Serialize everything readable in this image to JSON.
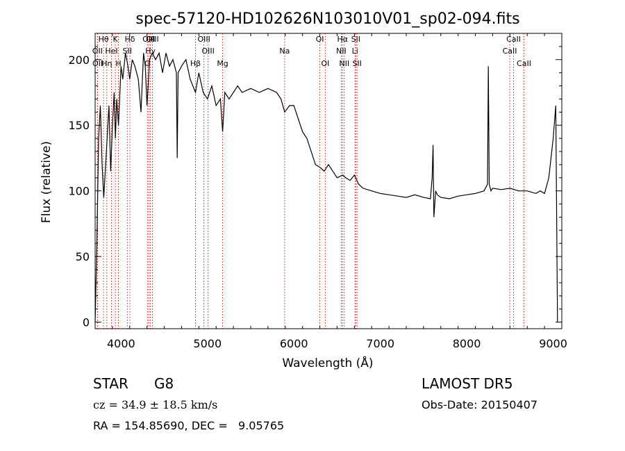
{
  "chart_data": {
    "type": "line",
    "title": "spec-57120-HD102626N103010V01_sp02-094.fits",
    "xlabel": "Wavelength (Å)",
    "ylabel": "Flux (relative)",
    "xlim": [
      3700,
      9100
    ],
    "ylim": [
      -5,
      220
    ],
    "xticks": [
      4000,
      5000,
      6000,
      7000,
      8000,
      9000
    ],
    "yticks": [
      0,
      50,
      100,
      150,
      200
    ],
    "grid": false,
    "series": [
      {
        "color": "#000000",
        "x": [
          3700,
          3720,
          3740,
          3760,
          3780,
          3800,
          3830,
          3860,
          3880,
          3900,
          3920,
          3935,
          3950,
          3970,
          3990,
          4000,
          4020,
          4050,
          4080,
          4100,
          4130,
          4160,
          4200,
          4230,
          4260,
          4280,
          4300,
          4330,
          4360,
          4400,
          4440,
          4480,
          4520,
          4560,
          4600,
          4640,
          4650,
          4660,
          4700,
          4750,
          4800,
          4861,
          4900,
          4950,
          5000,
          5050,
          5100,
          5150,
          5175,
          5200,
          5250,
          5300,
          5350,
          5400,
          5500,
          5600,
          5700,
          5800,
          5850,
          5893,
          5950,
          6000,
          6050,
          6100,
          6150,
          6200,
          6250,
          6300,
          6350,
          6400,
          6450,
          6500,
          6563,
          6600,
          6650,
          6700,
          6750,
          6800,
          6900,
          7000,
          7100,
          7200,
          7300,
          7400,
          7500,
          7580,
          7600,
          7610,
          7620,
          7640,
          7660,
          7700,
          7800,
          7900,
          8000,
          8100,
          8200,
          8240,
          8250,
          8260,
          8280,
          8300,
          8400,
          8500,
          8600,
          8700,
          8800,
          8850,
          8900,
          8950,
          9000,
          9030,
          9050
        ],
        "y": [
          0,
          60,
          140,
          165,
          120,
          95,
          130,
          165,
          115,
          150,
          175,
          140,
          170,
          150,
          180,
          195,
          185,
          205,
          195,
          185,
          200,
          195,
          185,
          160,
          205,
          195,
          165,
          200,
          205,
          200,
          205,
          190,
          205,
          195,
          200,
          190,
          125,
          190,
          195,
          200,
          185,
          175,
          190,
          175,
          170,
          180,
          165,
          170,
          145,
          175,
          170,
          175,
          180,
          175,
          178,
          175,
          178,
          175,
          170,
          160,
          165,
          165,
          155,
          145,
          140,
          130,
          120,
          118,
          115,
          120,
          115,
          110,
          112,
          110,
          108,
          112,
          105,
          102,
          100,
          98,
          97,
          96,
          95,
          97,
          95,
          94,
          110,
          135,
          80,
          100,
          97,
          95,
          94,
          96,
          97,
          98,
          100,
          105,
          195,
          105,
          100,
          102,
          101,
          102,
          100,
          100,
          98,
          100,
          98,
          110,
          140,
          165,
          0
        ]
      }
    ],
    "lines": [
      {
        "label": "Hθ",
        "x": 3797,
        "row": 1
      },
      {
        "label": "OII",
        "x": 3727,
        "row": 2
      },
      {
        "label": "OII",
        "x": 3729,
        "row": 3
      },
      {
        "label": "Hη",
        "x": 3835,
        "row": 3
      },
      {
        "label": "HeI",
        "x": 3889,
        "row": 2
      },
      {
        "label": "K",
        "x": 3934,
        "row": 1
      },
      {
        "label": "H",
        "x": 3969,
        "row": 3
      },
      {
        "label": "SII",
        "x": 4072,
        "row": 2
      },
      {
        "label": "Hδ",
        "x": 4102,
        "row": 1
      },
      {
        "label": "OIII",
        "x": 4321,
        "row": 1
      },
      {
        "label": "Hγ",
        "x": 4340,
        "row": 2
      },
      {
        "label": "G",
        "x": 4305,
        "row": 3
      },
      {
        "label": "OIII",
        "x": 4363,
        "row": 1
      },
      {
        "label": "Hβ",
        "x": 4861,
        "row": 3
      },
      {
        "label": "OIII",
        "x": 4959,
        "row": 1
      },
      {
        "label": "OIII",
        "x": 5007,
        "row": 2
      },
      {
        "label": "Mg",
        "x": 5175,
        "row": 3
      },
      {
        "label": "Na",
        "x": 5893,
        "row": 2
      },
      {
        "label": "OI",
        "x": 6300,
        "row": 1
      },
      {
        "label": "OI",
        "x": 6363,
        "row": 3
      },
      {
        "label": "NII",
        "x": 6548,
        "row": 2
      },
      {
        "label": "Hα",
        "x": 6563,
        "row": 1
      },
      {
        "label": "NII",
        "x": 6583,
        "row": 3
      },
      {
        "label": "Li",
        "x": 6707,
        "row": 2
      },
      {
        "label": "SII",
        "x": 6716,
        "row": 1
      },
      {
        "label": "SII",
        "x": 6731,
        "row": 3
      },
      {
        "label": "CaII",
        "x": 8498,
        "row": 2
      },
      {
        "label": "CaII",
        "x": 8542,
        "row": 1
      },
      {
        "label": "CaII",
        "x": 8662,
        "row": 3
      }
    ]
  },
  "info": {
    "obj_class": "STAR",
    "subclass": "G8",
    "survey": "LAMOST DR5",
    "cz": "cz = 34.9 ± 18.5 km/s",
    "obs_date": "Obs-Date: 20150407",
    "radec": "RA = 154.85690, DEC =   9.05765"
  }
}
